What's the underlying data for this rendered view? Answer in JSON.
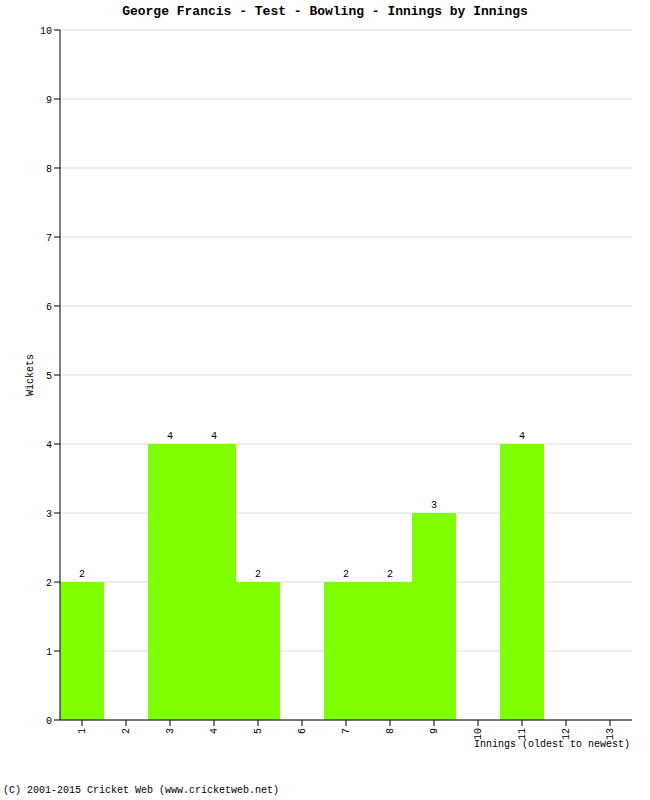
{
  "chart_data": {
    "type": "bar",
    "title": "George Francis - Test - Bowling - Innings by Innings",
    "x_label": "Innings (oldest to newest)",
    "y_label": "Wickets",
    "footer": "(C) 2001-2015 Cricket Web (www.cricketweb.net)",
    "categories": [
      "1",
      "2",
      "3",
      "4",
      "5",
      "6",
      "7",
      "8",
      "9",
      "10",
      "11",
      "12",
      "13"
    ],
    "values": [
      2,
      0,
      4,
      4,
      2,
      0,
      2,
      2,
      3,
      0,
      4,
      0,
      0
    ],
    "color": "#80ff00",
    "ylim": [
      0,
      10
    ],
    "yticks": [
      0,
      1,
      2,
      3,
      4,
      5,
      6,
      7,
      8,
      9,
      10
    ],
    "grid": true,
    "data_labels": true
  }
}
